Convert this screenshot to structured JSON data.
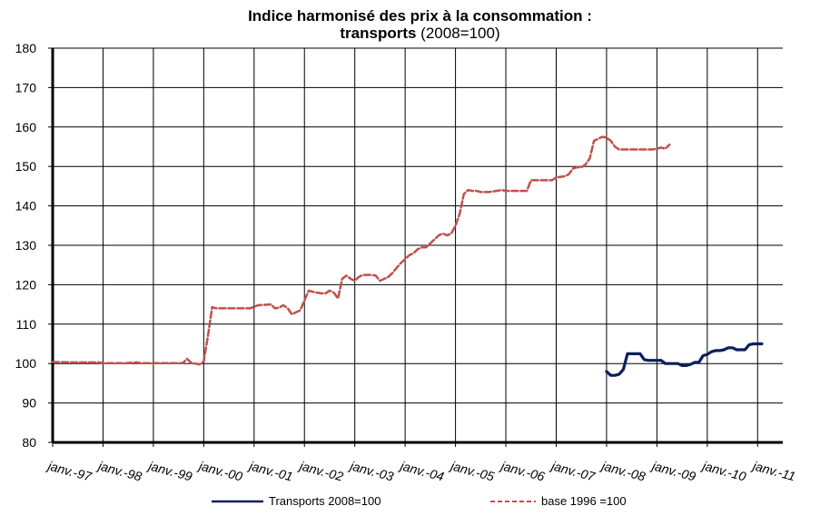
{
  "chart_data": {
    "type": "line",
    "title_line1": "Indice harmonisé des prix à la consommation :",
    "title_line2_bold": "transports",
    "title_line2_rest": " (2008=100)",
    "xlabel": "",
    "ylabel": "",
    "ylim": [
      80,
      180
    ],
    "yticks": [
      80,
      90,
      100,
      110,
      120,
      130,
      140,
      150,
      160,
      170,
      180
    ],
    "xlim_months_from": "1997-01",
    "xlim_months_to": "2011-07",
    "xticks": [
      "janv.-97",
      "janv.-98",
      "janv.-99",
      "janv.-00",
      "janv.-01",
      "janv.-02",
      "janv.-03",
      "janv.-04",
      "janv.-05",
      "janv.-06",
      "janv.-07",
      "janv.-08",
      "janv.-09",
      "janv.-10",
      "janv.-11"
    ],
    "grid": true,
    "legend_position": "bottom",
    "series": [
      {
        "name": "Transports  2008=100",
        "color": "#0b1f5c",
        "style": "solid",
        "points": [
          [
            "2008-01",
            98
          ],
          [
            "2008-02",
            97
          ],
          [
            "2008-03",
            97
          ],
          [
            "2008-04",
            97.3
          ],
          [
            "2008-05",
            98.5
          ],
          [
            "2008-06",
            102.5
          ],
          [
            "2008-07",
            102.5
          ],
          [
            "2008-08",
            102.5
          ],
          [
            "2008-09",
            102.5
          ],
          [
            "2008-10",
            101
          ],
          [
            "2008-11",
            100.8
          ],
          [
            "2008-12",
            100.8
          ],
          [
            "2009-01",
            100.8
          ],
          [
            "2009-02",
            100.8
          ],
          [
            "2009-03",
            100
          ],
          [
            "2009-04",
            100
          ],
          [
            "2009-05",
            100
          ],
          [
            "2009-06",
            100
          ],
          [
            "2009-07",
            99.5
          ],
          [
            "2009-08",
            99.5
          ],
          [
            "2009-09",
            99.8
          ],
          [
            "2009-10",
            100.3
          ],
          [
            "2009-11",
            100.3
          ],
          [
            "2009-12",
            102
          ],
          [
            "2010-01",
            102.3
          ],
          [
            "2010-02",
            103
          ],
          [
            "2010-03",
            103.3
          ],
          [
            "2010-04",
            103.3
          ],
          [
            "2010-05",
            103.5
          ],
          [
            "2010-06",
            104
          ],
          [
            "2010-07",
            104
          ],
          [
            "2010-08",
            103.5
          ],
          [
            "2010-09",
            103.5
          ],
          [
            "2010-10",
            103.5
          ],
          [
            "2010-11",
            104.8
          ],
          [
            "2010-12",
            105
          ],
          [
            "2011-01",
            105
          ],
          [
            "2011-02",
            105
          ]
        ]
      },
      {
        "name": "base 1996  =100",
        "color": "#c0504d",
        "style": "dashed",
        "points": [
          [
            "1997-01",
            100.4
          ],
          [
            "1997-06",
            100.3
          ],
          [
            "1997-12",
            100.3
          ],
          [
            "1998-01",
            100.1
          ],
          [
            "1998-06",
            100.1
          ],
          [
            "1998-09",
            100.3
          ],
          [
            "1998-10",
            100.1
          ],
          [
            "1999-01",
            100.1
          ],
          [
            "1999-06",
            100.1
          ],
          [
            "1999-08",
            100.1
          ],
          [
            "1999-09",
            101.2
          ],
          [
            "1999-10",
            100.2
          ],
          [
            "1999-12",
            99.8
          ],
          [
            "2000-01",
            100.5
          ],
          [
            "2000-02",
            107
          ],
          [
            "2000-03",
            114.3
          ],
          [
            "2000-04",
            114
          ],
          [
            "2000-06",
            114
          ],
          [
            "2000-12",
            114
          ],
          [
            "2001-02",
            114.8
          ],
          [
            "2001-05",
            115
          ],
          [
            "2001-06",
            114
          ],
          [
            "2001-07",
            114.2
          ],
          [
            "2001-08",
            114.8
          ],
          [
            "2001-09",
            114
          ],
          [
            "2001-10",
            112.5
          ],
          [
            "2001-11",
            113
          ],
          [
            "2001-12",
            113.5
          ],
          [
            "2002-01",
            116
          ],
          [
            "2002-02",
            118.5
          ],
          [
            "2002-03",
            118.2
          ],
          [
            "2002-04",
            118
          ],
          [
            "2002-05",
            117.8
          ],
          [
            "2002-06",
            117.8
          ],
          [
            "2002-07",
            118.5
          ],
          [
            "2002-08",
            118
          ],
          [
            "2002-09",
            116.5
          ],
          [
            "2002-10",
            121.5
          ],
          [
            "2002-11",
            122.3
          ],
          [
            "2002-12",
            121.5
          ],
          [
            "2003-01",
            121
          ],
          [
            "2003-02",
            122
          ],
          [
            "2003-03",
            122.5
          ],
          [
            "2003-05",
            122.5
          ],
          [
            "2003-06",
            122.3
          ],
          [
            "2003-07",
            121
          ],
          [
            "2003-08",
            121.5
          ],
          [
            "2003-09",
            122
          ],
          [
            "2003-10",
            123
          ],
          [
            "2003-11",
            124.3
          ],
          [
            "2003-12",
            125.5
          ],
          [
            "2004-01",
            126.5
          ],
          [
            "2004-02",
            127.5
          ],
          [
            "2004-03",
            128
          ],
          [
            "2004-04",
            129
          ],
          [
            "2004-05",
            129.5
          ],
          [
            "2004-06",
            129.5
          ],
          [
            "2004-07",
            130.5
          ],
          [
            "2004-08",
            131.5
          ],
          [
            "2004-09",
            132.5
          ],
          [
            "2004-10",
            133
          ],
          [
            "2004-11",
            132.5
          ],
          [
            "2004-12",
            133
          ],
          [
            "2005-01",
            135
          ],
          [
            "2005-02",
            138
          ],
          [
            "2005-03",
            143
          ],
          [
            "2005-04",
            144
          ],
          [
            "2005-05",
            143.8
          ],
          [
            "2005-06",
            143.8
          ],
          [
            "2005-07",
            143.5
          ],
          [
            "2005-09",
            143.5
          ],
          [
            "2005-12",
            144
          ],
          [
            "2006-01",
            143.8
          ],
          [
            "2006-06",
            143.8
          ],
          [
            "2006-07",
            146.5
          ],
          [
            "2006-09",
            146.5
          ],
          [
            "2006-12",
            146.5
          ],
          [
            "2007-01",
            147.2
          ],
          [
            "2007-03",
            147.5
          ],
          [
            "2007-04",
            148
          ],
          [
            "2007-05",
            149.5
          ],
          [
            "2007-06",
            149.8
          ],
          [
            "2007-07",
            149.8
          ],
          [
            "2007-08",
            150.5
          ],
          [
            "2007-09",
            152
          ],
          [
            "2007-10",
            156.5
          ],
          [
            "2007-11",
            157
          ],
          [
            "2007-12",
            157.5
          ],
          [
            "2008-01",
            157.3
          ],
          [
            "2008-02",
            156.5
          ],
          [
            "2008-03",
            155
          ],
          [
            "2008-04",
            154.3
          ],
          [
            "2008-06",
            154.3
          ],
          [
            "2008-09",
            154.3
          ],
          [
            "2008-12",
            154.3
          ],
          [
            "2009-01",
            154.5
          ],
          [
            "2009-02",
            154.8
          ],
          [
            "2009-03",
            154.5
          ],
          [
            "2009-04",
            155.5
          ]
        ]
      }
    ]
  },
  "colors": {
    "frame": "#000000",
    "plot_background": "#ffffff",
    "grid": "#000000"
  }
}
